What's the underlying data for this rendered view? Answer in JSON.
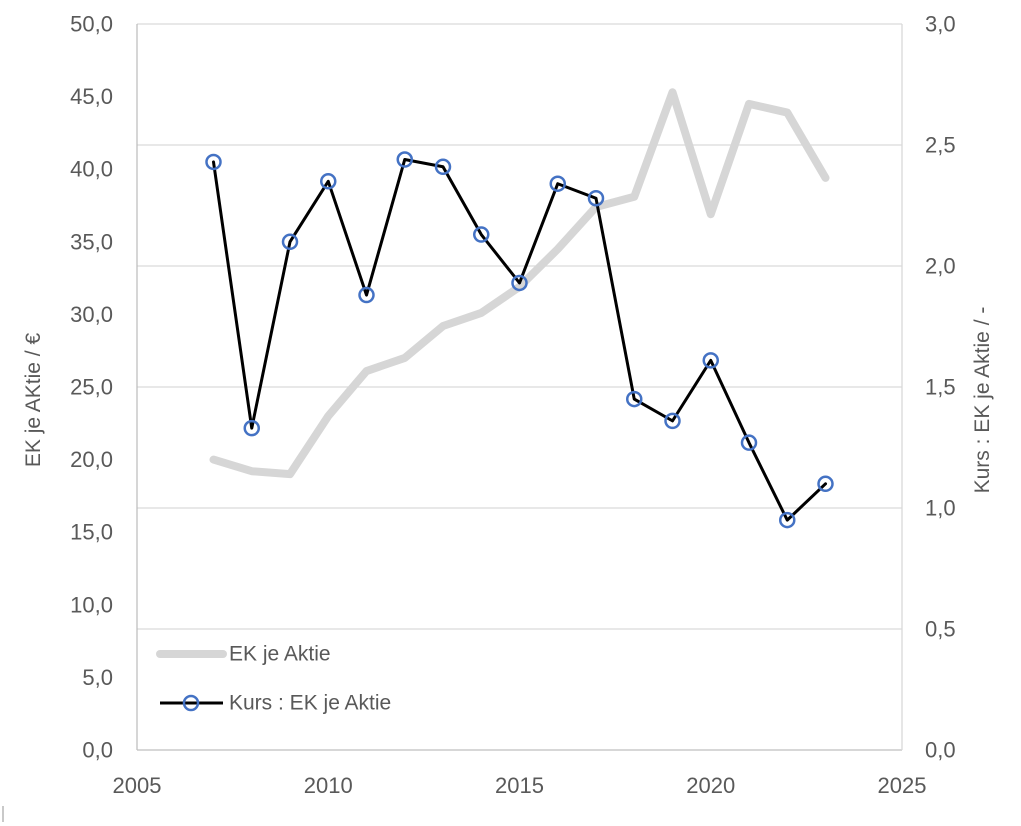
{
  "page": {
    "background": "#ffffff"
  },
  "chart_data": {
    "type": "line",
    "x": [
      2007,
      2008,
      2009,
      2010,
      2011,
      2012,
      2013,
      2014,
      2015,
      2016,
      2017,
      2018,
      2019,
      2020,
      2021,
      2022,
      2023
    ],
    "series": [
      {
        "name": "EK je Aktie",
        "axis": "left",
        "color": "#d6d6d6",
        "stroke_width": 8,
        "marker": null,
        "values": [
          20.0,
          19.2,
          19.0,
          23.0,
          26.1,
          27.0,
          29.2,
          30.1,
          31.9,
          34.5,
          37.4,
          38.1,
          45.3,
          36.9,
          44.5,
          43.9,
          39.4
        ]
      },
      {
        "name": "Kurs : EK je Aktie",
        "axis": "right",
        "color": "#000000",
        "stroke_width": 3,
        "marker": {
          "shape": "circle",
          "stroke": "#4472c4",
          "fill": "none",
          "radius": 7,
          "stroke_width": 2.5
        },
        "values": [
          2.43,
          1.33,
          2.1,
          2.35,
          1.88,
          2.44,
          2.41,
          2.13,
          1.93,
          2.34,
          2.28,
          1.45,
          1.36,
          1.61,
          1.27,
          0.95,
          1.1
        ]
      }
    ],
    "x_axis": {
      "min": 2005,
      "max": 2025,
      "ticks": [
        {
          "value": 2005,
          "label": "2005"
        },
        {
          "value": 2010,
          "label": "2010"
        },
        {
          "value": 2015,
          "label": "2015"
        },
        {
          "value": 2020,
          "label": "2020"
        },
        {
          "value": 2025,
          "label": "2025"
        }
      ]
    },
    "left_axis": {
      "title": "EK je AKtie / €",
      "min": 0,
      "max": 50,
      "ticks": [
        {
          "value": 0,
          "label": "0,0"
        },
        {
          "value": 5,
          "label": "5,0"
        },
        {
          "value": 10,
          "label": "10,0"
        },
        {
          "value": 15,
          "label": "15,0"
        },
        {
          "value": 20,
          "label": "20,0"
        },
        {
          "value": 25,
          "label": "25,0"
        },
        {
          "value": 30,
          "label": "30,0"
        },
        {
          "value": 35,
          "label": "35,0"
        },
        {
          "value": 40,
          "label": "40,0"
        },
        {
          "value": 45,
          "label": "45,0"
        },
        {
          "value": 50,
          "label": "50,0"
        }
      ]
    },
    "right_axis": {
      "title": "Kurs : EK je Aktie / -",
      "min": 0,
      "max": 3,
      "ticks": [
        {
          "value": 0,
          "label": "0,0"
        },
        {
          "value": 0.5,
          "label": "0,5"
        },
        {
          "value": 1,
          "label": "1,0"
        },
        {
          "value": 1.5,
          "label": "1,5"
        },
        {
          "value": 2,
          "label": "2,0"
        },
        {
          "value": 2.5,
          "label": "2,5"
        },
        {
          "value": 3,
          "label": "3,0"
        }
      ]
    },
    "grid": {
      "horizontal_follows": "right_axis",
      "vertical": false
    },
    "legend": {
      "position": "inside-bottom-left",
      "items": [
        "EK je Aktie",
        "Kurs : EK je Aktie"
      ]
    },
    "colors": {
      "grid": "#d9d9d9",
      "axis_line": "#bfbfbf",
      "tick_text": "#595959",
      "title_text": "#595959"
    }
  }
}
